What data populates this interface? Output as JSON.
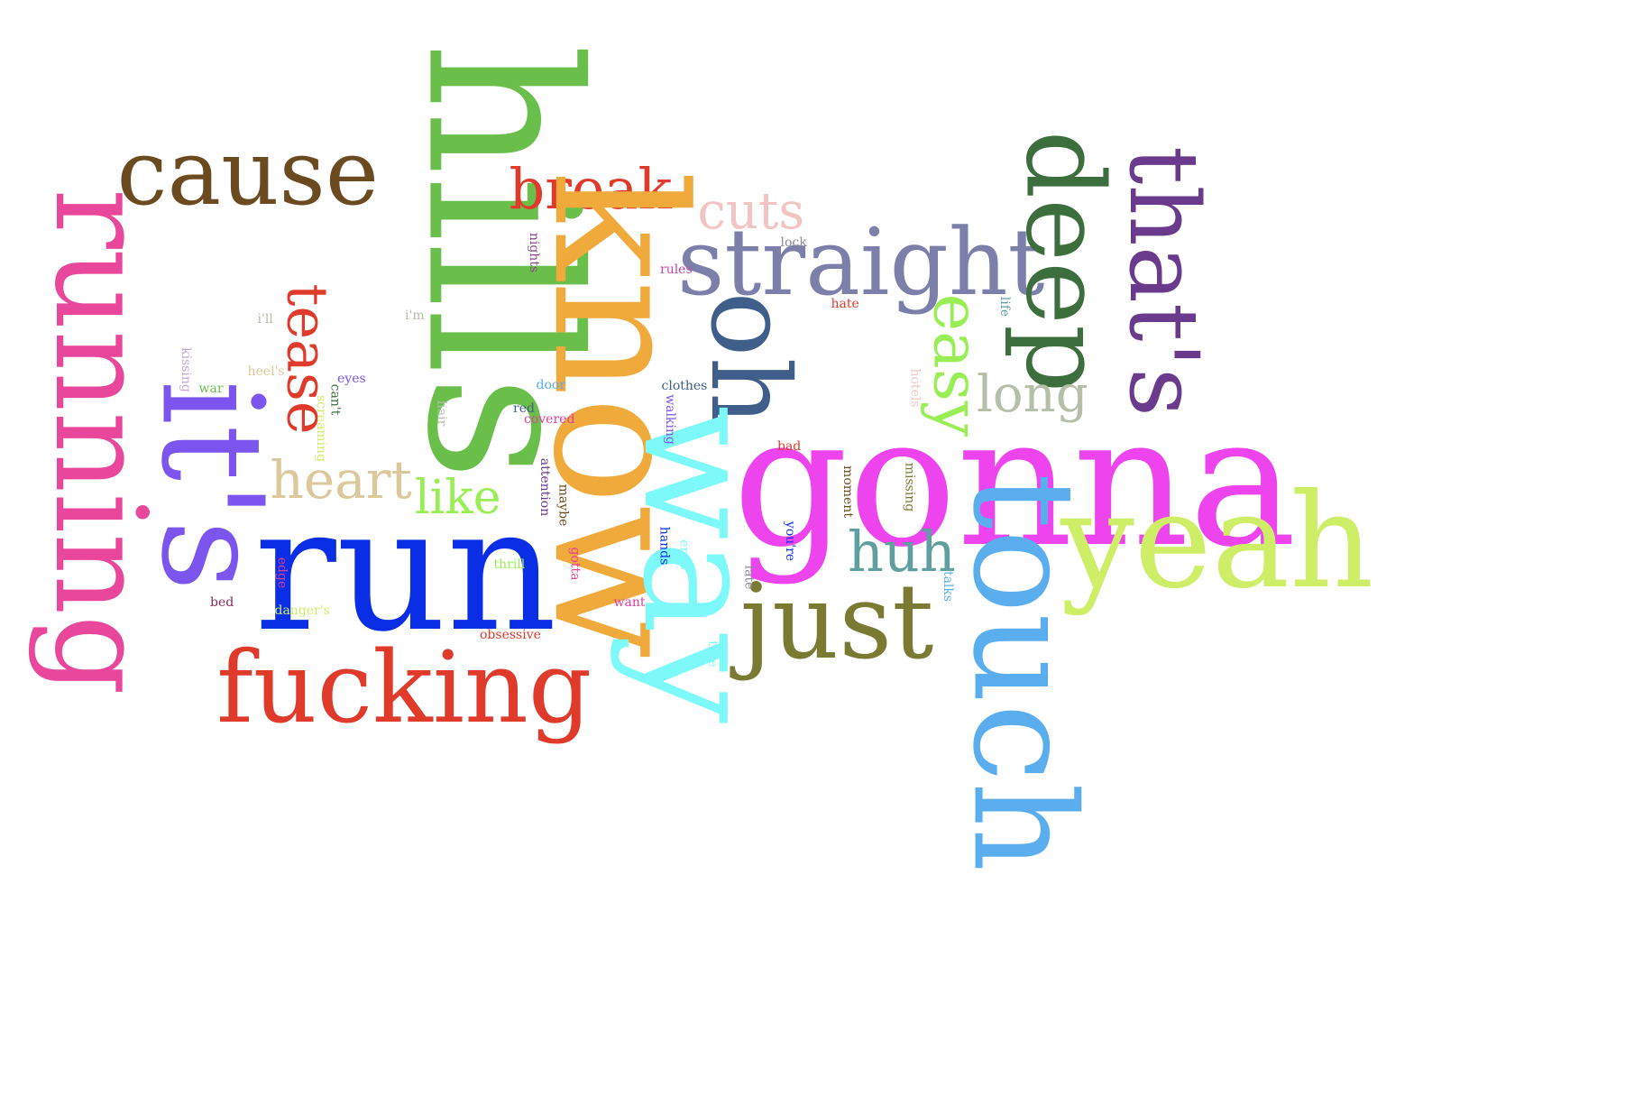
{
  "words": [
    {
      "text": "hills",
      "color": "#6abf4b",
      "rotate": 90
    },
    {
      "text": "running",
      "color": "#e8479b",
      "rotate": 90
    },
    {
      "text": "cause",
      "color": "#6b4a1f",
      "rotate": 0
    },
    {
      "text": "break",
      "color": "#e03a2b",
      "rotate": 0
    },
    {
      "text": "know",
      "color": "#f0a93b",
      "rotate": 90
    },
    {
      "text": "cuts",
      "color": "#f2c4c4",
      "rotate": 0
    },
    {
      "text": "straight",
      "color": "#7b7faa",
      "rotate": 0
    },
    {
      "text": "deep",
      "color": "#3d6e3d",
      "rotate": 90
    },
    {
      "text": "that's",
      "color": "#6a3a8c",
      "rotate": 90
    },
    {
      "text": "oh",
      "color": "#3f5f8a",
      "rotate": 90
    },
    {
      "text": "easy",
      "color": "#99ee55",
      "rotate": 90
    },
    {
      "text": "long",
      "color": "#b5bfa8",
      "rotate": 0
    },
    {
      "text": "it's",
      "color": "#7b55ee",
      "rotate": 90
    },
    {
      "text": "tease",
      "color": "#e03a2b",
      "rotate": 90
    },
    {
      "text": "heart",
      "color": "#dcc89a",
      "rotate": 0
    },
    {
      "text": "like",
      "color": "#99ee55",
      "rotate": 0
    },
    {
      "text": "run",
      "color": "#0a2ee6",
      "rotate": 0
    },
    {
      "text": "way",
      "color": "#7ef9f9",
      "rotate": 90
    },
    {
      "text": "gonna",
      "color": "#ee44ee",
      "rotate": 0
    },
    {
      "text": "yeah",
      "color": "#cdee66",
      "rotate": 0
    },
    {
      "text": "huh",
      "color": "#5f9f9f",
      "rotate": 0
    },
    {
      "text": "touch",
      "color": "#5aaeee",
      "rotate": 90
    },
    {
      "text": "just",
      "color": "#7a7a33",
      "rotate": 0
    },
    {
      "text": "fucking",
      "color": "#e03a2b",
      "rotate": 0
    },
    {
      "text": "nights",
      "color": "#8a4a8a",
      "rotate": 90
    },
    {
      "text": "rules",
      "color": "#c04ab0",
      "rotate": 0
    },
    {
      "text": "lock",
      "color": "#8a8a9a",
      "rotate": 0
    },
    {
      "text": "hate",
      "color": "#e03a2b",
      "rotate": 0
    },
    {
      "text": "i'm",
      "color": "#b5bfa8",
      "rotate": 0
    },
    {
      "text": "i'll",
      "color": "#b5bfa8",
      "rotate": 0
    },
    {
      "text": "kissing",
      "color": "#c5a8d8",
      "rotate": 90
    },
    {
      "text": "war",
      "color": "#6abf4b",
      "rotate": 0
    },
    {
      "text": "heel's",
      "color": "#dcc89a",
      "rotate": 0
    },
    {
      "text": "eyes",
      "color": "#7b55ee",
      "rotate": 0
    },
    {
      "text": "can't",
      "color": "#3d6e3d",
      "rotate": 90
    },
    {
      "text": "screaming",
      "color": "#cdee66",
      "rotate": 90
    },
    {
      "text": "hair",
      "color": "#b5bfa8",
      "rotate": 90
    },
    {
      "text": "door",
      "color": "#5aaeee",
      "rotate": 0
    },
    {
      "text": "red",
      "color": "#3f5f8a",
      "rotate": 0
    },
    {
      "text": "covered",
      "color": "#e0409a",
      "rotate": 0
    },
    {
      "text": "clothes",
      "color": "#3f5f8a",
      "rotate": 0
    },
    {
      "text": "walking",
      "color": "#7b55ee",
      "rotate": 90
    },
    {
      "text": "life",
      "color": "#5f9f9f",
      "rotate": 90
    },
    {
      "text": "hotels",
      "color": "#f2c4c4",
      "rotate": 90
    },
    {
      "text": "bad",
      "color": "#e03a2b",
      "rotate": 0
    },
    {
      "text": "moment",
      "color": "#6b4a1f",
      "rotate": 90
    },
    {
      "text": "missing",
      "color": "#7a7a33",
      "rotate": 90
    },
    {
      "text": "attention",
      "color": "#6a3a8c",
      "rotate": 90
    },
    {
      "text": "maybe",
      "color": "#6b4a1f",
      "rotate": 90
    },
    {
      "text": "gotta",
      "color": "#e0409a",
      "rotate": 90
    },
    {
      "text": "hands",
      "color": "#0a2ee6",
      "rotate": 90
    },
    {
      "text": "ends",
      "color": "#7ef9f9",
      "rotate": 90
    },
    {
      "text": "you're",
      "color": "#0a2ee6",
      "rotate": 90
    },
    {
      "text": "late",
      "color": "#8a8a9a",
      "rotate": 90
    },
    {
      "text": "talks",
      "color": "#5aaeee",
      "rotate": 90
    },
    {
      "text": "edge",
      "color": "#e0409a",
      "rotate": 90
    },
    {
      "text": "thrill",
      "color": "#99ee55",
      "rotate": 0
    },
    {
      "text": "bed",
      "color": "#8a2a5a",
      "rotate": 0
    },
    {
      "text": "danger's",
      "color": "#cdee66",
      "rotate": 0
    },
    {
      "text": "want",
      "color": "#e0409a",
      "rotate": 0
    },
    {
      "text": "obsessive",
      "color": "#e03a2b",
      "rotate": 0
    },
    {
      "text": "true",
      "color": "#7ef9f9",
      "rotate": 90
    }
  ]
}
